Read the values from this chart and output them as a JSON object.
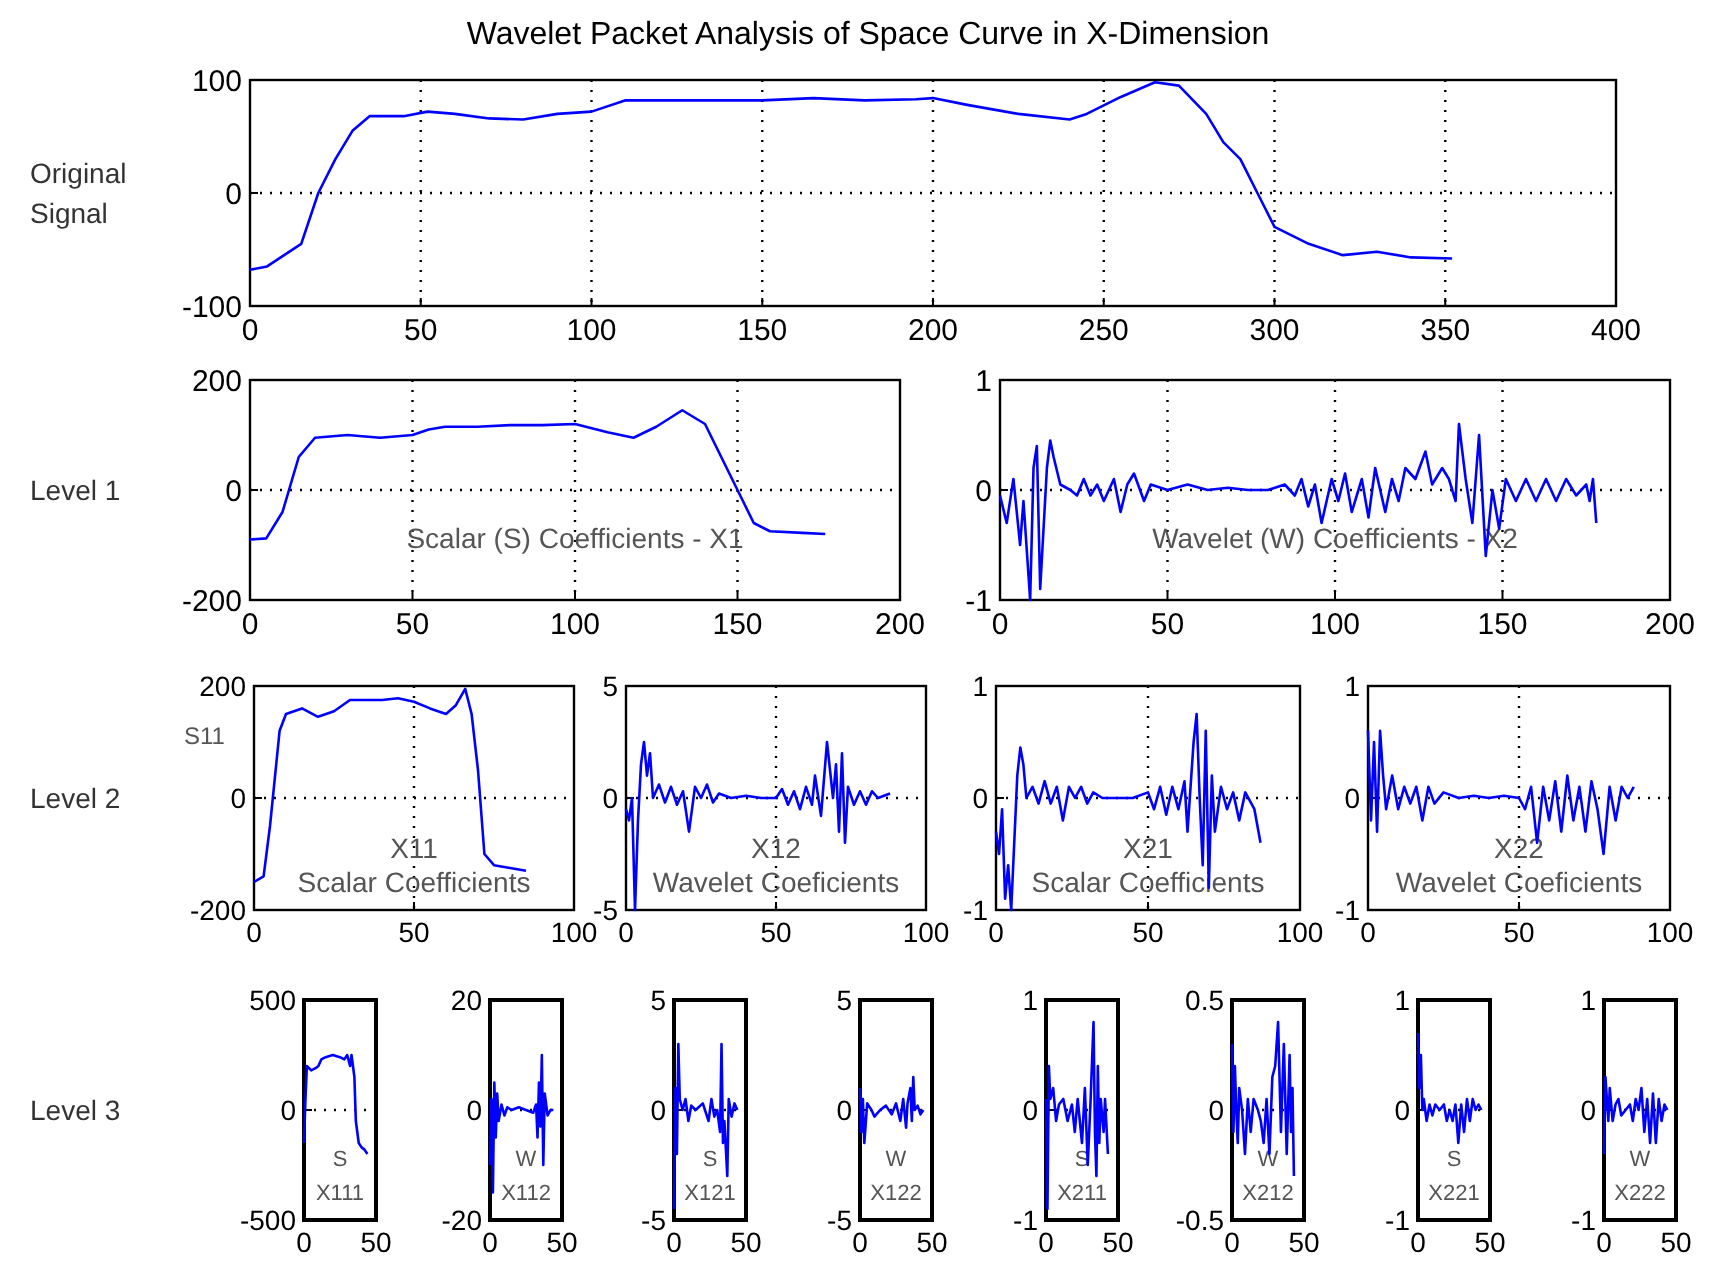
{
  "chart_data": [
    {
      "type": "line",
      "title": "Wavelet Packet Analysis of Space Curve in X-Dimension",
      "ylabel": "Original Signal",
      "color": "#0000ff",
      "grid": true,
      "xlim": [
        0,
        400
      ],
      "xticks": [
        0,
        50,
        100,
        150,
        200,
        250,
        300,
        350,
        400
      ],
      "ylim": [
        -100,
        100
      ],
      "yticks": [
        -100,
        0,
        100
      ],
      "x": [
        0,
        5,
        10,
        15,
        20,
        25,
        30,
        35,
        45,
        52,
        60,
        70,
        80,
        90,
        100,
        110,
        130,
        150,
        165,
        180,
        195,
        200,
        210,
        225,
        240,
        245,
        255,
        265,
        272,
        280,
        285,
        290,
        295,
        300,
        310,
        320,
        330,
        340,
        352
      ],
      "values": [
        -68,
        -65,
        -55,
        -45,
        0,
        30,
        55,
        68,
        68,
        72,
        70,
        66,
        65,
        70,
        72,
        82,
        82,
        82,
        84,
        82,
        83,
        84,
        78,
        70,
        65,
        70,
        85,
        98,
        95,
        70,
        45,
        30,
        0,
        -30,
        -45,
        -55,
        -52,
        -57,
        -58
      ]
    },
    {
      "type": "line",
      "ylabel": "Level 1",
      "annotations": [
        "Scalar (S) Coefficients - X1"
      ],
      "color": "#0000ff",
      "grid": true,
      "xlim": [
        0,
        200
      ],
      "xticks": [
        0,
        50,
        100,
        150,
        200
      ],
      "ylim": [
        -200,
        200
      ],
      "yticks": [
        -200,
        0,
        200
      ],
      "x": [
        0,
        5,
        10,
        15,
        20,
        30,
        40,
        50,
        55,
        60,
        70,
        80,
        90,
        100,
        110,
        118,
        125,
        133,
        140,
        145,
        150,
        155,
        160,
        170,
        177
      ],
      "values": [
        -90,
        -88,
        -40,
        60,
        95,
        100,
        95,
        100,
        110,
        115,
        115,
        118,
        118,
        120,
        105,
        95,
        115,
        145,
        120,
        60,
        0,
        -60,
        -75,
        -78,
        -80
      ]
    },
    {
      "type": "line",
      "annotations": [
        "Wavelet (W) Coefficients - X2"
      ],
      "color": "#0000ff",
      "grid": true,
      "xlim": [
        0,
        200
      ],
      "xticks": [
        0,
        50,
        100,
        150,
        200
      ],
      "ylim": [
        -1,
        1
      ],
      "yticks": [
        -1,
        0,
        1
      ],
      "x": [
        0,
        2,
        4,
        6,
        7,
        9,
        10,
        11,
        12,
        14,
        15,
        16,
        18,
        21,
        23,
        25,
        27,
        29,
        31,
        34,
        36,
        38,
        40,
        43,
        45,
        50,
        56,
        62,
        68,
        74,
        80,
        85,
        88,
        90,
        92,
        94,
        96,
        99,
        101,
        103,
        105,
        108,
        110,
        112,
        115,
        117,
        119,
        121,
        124,
        127,
        129,
        132,
        134,
        136,
        137,
        139,
        141,
        143,
        145,
        147,
        149,
        151,
        154,
        157,
        160,
        163,
        166,
        169,
        172,
        175,
        176,
        177,
        178
      ],
      "values": [
        -0.05,
        -0.3,
        0.1,
        -0.5,
        -0.1,
        -1.0,
        0.2,
        0.4,
        -0.9,
        0.2,
        0.45,
        0.3,
        0.05,
        0,
        -0.05,
        0.1,
        -0.05,
        0.05,
        -0.1,
        0.1,
        -0.2,
        0.05,
        0.15,
        -0.1,
        0.05,
        0,
        0.05,
        0,
        0.02,
        0,
        0,
        0.05,
        -0.05,
        0.1,
        -0.15,
        0.05,
        -0.3,
        0.1,
        -0.1,
        0.15,
        -0.2,
        0.1,
        -0.25,
        0.2,
        -0.2,
        0.1,
        -0.1,
        0.2,
        0.1,
        0.35,
        0.05,
        0.2,
        0.1,
        -0.1,
        0.6,
        0.1,
        -0.3,
        0.5,
        -0.6,
        0,
        -0.35,
        0.1,
        -0.1,
        0.1,
        -0.1,
        0.1,
        -0.1,
        0.1,
        -0.05,
        0.05,
        -0.1,
        0.1,
        -0.3
      ]
    },
    {
      "type": "line",
      "ylabel": "Level 2",
      "annotations": [
        "X11",
        "Scalar Coefficients"
      ],
      "color": "#0000ff",
      "grid": true,
      "xlim": [
        0,
        100
      ],
      "xticks": [
        0,
        50,
        100
      ],
      "ylim": [
        -200,
        200
      ],
      "yticks": [
        -200,
        0,
        200
      ],
      "x": [
        0,
        3,
        5,
        8,
        10,
        15,
        20,
        25,
        30,
        40,
        45,
        50,
        55,
        60,
        63,
        66,
        68,
        70,
        72,
        75,
        80,
        85
      ],
      "values": [
        -150,
        -140,
        -50,
        120,
        150,
        160,
        145,
        155,
        175,
        175,
        178,
        172,
        160,
        150,
        165,
        195,
        150,
        50,
        -100,
        -120,
        -125,
        -130
      ]
    },
    {
      "type": "line",
      "annotations": [
        "X12",
        "Wavelet Coeficients"
      ],
      "color": "#0000ff",
      "grid": true,
      "xlim": [
        0,
        100
      ],
      "xticks": [
        0,
        50,
        100
      ],
      "ylim": [
        -5,
        5
      ],
      "yticks": [
        -5,
        0,
        5
      ],
      "x": [
        0,
        1,
        2,
        3,
        4,
        5,
        6,
        7,
        8,
        9,
        11,
        13,
        15,
        17,
        19,
        21,
        23,
        25,
        27,
        29,
        31,
        35,
        40,
        45,
        50,
        52,
        54,
        56,
        58,
        60,
        62,
        63,
        65,
        67,
        69,
        70,
        71,
        72,
        73,
        74,
        76,
        78,
        80,
        82,
        84,
        88
      ],
      "values": [
        -0.5,
        -1,
        0,
        -5,
        -1,
        1.5,
        2.5,
        1,
        2,
        0,
        0.6,
        -0.2,
        0.5,
        -0.3,
        0.3,
        -1.5,
        0.5,
        0,
        0.6,
        -0.2,
        0.2,
        0,
        0.1,
        0,
        0,
        0.4,
        -0.3,
        0.3,
        -0.5,
        0.5,
        -0.3,
        1,
        -0.8,
        2.5,
        0,
        1.5,
        -1.5,
        2,
        -2,
        0.5,
        -0.3,
        0.3,
        -0.3,
        0.3,
        0,
        0.2
      ]
    },
    {
      "type": "line",
      "annotations": [
        "X21",
        "Scalar Coefficients"
      ],
      "color": "#0000ff",
      "grid": true,
      "xlim": [
        0,
        100
      ],
      "xticks": [
        0,
        50,
        100
      ],
      "ylim": [
        -1,
        1
      ],
      "yticks": [
        -1,
        0,
        1
      ],
      "x": [
        0,
        1,
        2,
        3,
        4,
        5,
        6,
        7,
        8,
        9,
        10,
        12,
        14,
        16,
        18,
        20,
        22,
        24,
        26,
        28,
        30,
        32,
        35,
        40,
        45,
        50,
        52,
        54,
        56,
        58,
        60,
        62,
        63,
        65,
        66,
        67,
        68,
        69,
        70,
        71,
        72,
        74,
        76,
        78,
        80,
        82,
        85,
        87
      ],
      "values": [
        -0.3,
        -0.5,
        -0.1,
        -0.9,
        -0.6,
        -1,
        -0.4,
        0.2,
        0.45,
        0.3,
        0,
        0.1,
        -0.05,
        0.15,
        -0.05,
        0.1,
        -0.2,
        0.1,
        0,
        0.1,
        -0.05,
        0.05,
        0,
        0,
        0,
        0.05,
        -0.1,
        0.1,
        -0.15,
        0.1,
        -0.1,
        0.15,
        -0.3,
        0.5,
        0.75,
        0,
        -0.6,
        0.6,
        -0.8,
        0.2,
        -0.3,
        0.1,
        -0.1,
        0.05,
        -0.2,
        0.05,
        -0.1,
        -0.4
      ]
    },
    {
      "type": "line",
      "annotations": [
        "X22",
        "Wavelet Coeficients"
      ],
      "color": "#0000ff",
      "grid": true,
      "xlim": [
        0,
        100
      ],
      "xticks": [
        0,
        50,
        100
      ],
      "ylim": [
        -1,
        1
      ],
      "yticks": [
        -1,
        0,
        1
      ],
      "x": [
        0,
        1,
        2,
        3,
        4,
        5,
        6,
        8,
        10,
        12,
        14,
        16,
        18,
        20,
        22,
        25,
        30,
        35,
        40,
        45,
        50,
        52,
        54,
        56,
        58,
        60,
        62,
        64,
        66,
        68,
        70,
        72,
        74,
        76,
        78,
        80,
        82,
        84,
        86,
        88
      ],
      "values": [
        0.6,
        -0.2,
        0.5,
        -0.3,
        0.6,
        0.2,
        -0.1,
        0.2,
        -0.1,
        0.1,
        -0.05,
        0.1,
        -0.2,
        0.1,
        -0.05,
        0.05,
        0,
        0.02,
        0,
        0.02,
        0,
        -0.1,
        0.1,
        -0.4,
        0.1,
        -0.2,
        0.15,
        -0.3,
        0.2,
        -0.2,
        0.1,
        -0.3,
        0.15,
        -0.1,
        -0.5,
        0.1,
        -0.2,
        0.1,
        0,
        0.1
      ]
    },
    {
      "type": "line",
      "ylabel": "Level 3",
      "annotations": [
        "S",
        "X111"
      ],
      "color": "#0000ff",
      "grid": true,
      "xlim": [
        0,
        50
      ],
      "xticks": [
        0,
        50
      ],
      "ylim": [
        -500,
        500
      ],
      "yticks": [
        -500,
        0,
        500
      ],
      "x": [
        0,
        1,
        2,
        5,
        8,
        10,
        12,
        15,
        20,
        25,
        28,
        30,
        32,
        33,
        35,
        36,
        37,
        38,
        40,
        42,
        44
      ],
      "values": [
        -150,
        50,
        200,
        180,
        190,
        200,
        230,
        240,
        250,
        240,
        230,
        250,
        200,
        250,
        150,
        -50,
        -100,
        -150,
        -170,
        -180,
        -200
      ]
    },
    {
      "type": "line",
      "annotations": [
        "W",
        "X112"
      ],
      "color": "#0000ff",
      "grid": true,
      "xlim": [
        0,
        50
      ],
      "xticks": [
        0,
        50
      ],
      "ylim": [
        -20,
        20
      ],
      "yticks": [
        -20,
        0,
        20
      ],
      "x": [
        0,
        1,
        2,
        3,
        4,
        5,
        6,
        8,
        10,
        12,
        15,
        20,
        25,
        30,
        32,
        33,
        34,
        35,
        36,
        37,
        38,
        40,
        42,
        44
      ],
      "values": [
        -10,
        2,
        -15,
        5,
        -5,
        3,
        -2,
        1,
        -1,
        0.5,
        0,
        0.5,
        0,
        -0.5,
        1,
        -5,
        5,
        -3,
        10,
        -10,
        3,
        -1,
        0,
        0
      ]
    },
    {
      "type": "line",
      "annotations": [
        "S",
        "X121"
      ],
      "color": "#0000ff",
      "grid": true,
      "xlim": [
        0,
        50
      ],
      "xticks": [
        0,
        50
      ],
      "ylim": [
        -5,
        5
      ],
      "yticks": [
        -5,
        0,
        5
      ],
      "x": [
        0,
        1,
        2,
        3,
        4,
        6,
        8,
        10,
        12,
        15,
        20,
        24,
        26,
        28,
        30,
        32,
        33,
        34,
        35,
        37,
        38,
        40,
        42,
        44
      ],
      "values": [
        -4.5,
        1,
        -2,
        3,
        0.5,
        0,
        0.5,
        -0.5,
        0.2,
        0,
        0.3,
        -0.5,
        0.5,
        -0.3,
        0,
        -1,
        3,
        -1.5,
        -0.5,
        -3,
        0.5,
        -0.3,
        0.3,
        0
      ]
    },
    {
      "type": "line",
      "annotations": [
        "W",
        "X122"
      ],
      "color": "#0000ff",
      "grid": true,
      "xlim": [
        0,
        50
      ],
      "xticks": [
        0,
        50
      ],
      "ylim": [
        -5,
        5
      ],
      "yticks": [
        -5,
        0,
        5
      ],
      "x": [
        0,
        1,
        2,
        3,
        5,
        8,
        10,
        14,
        18,
        22,
        25,
        28,
        30,
        32,
        33,
        35,
        36,
        37,
        38,
        40,
        42,
        44
      ],
      "values": [
        1,
        -1,
        0.5,
        -1.5,
        0.3,
        0,
        -0.3,
        0,
        0.2,
        -0.2,
        0.3,
        -0.5,
        0.5,
        -0.8,
        0.3,
        1,
        -0.5,
        1.5,
        0,
        0.2,
        -0.2,
        0
      ]
    },
    {
      "type": "line",
      "annotations": [
        "S",
        "X211"
      ],
      "color": "#0000ff",
      "grid": true,
      "xlim": [
        0,
        50
      ],
      "xticks": [
        0,
        50
      ],
      "ylim": [
        -1,
        1
      ],
      "yticks": [
        -1,
        0,
        1
      ],
      "x": [
        0,
        1,
        2,
        3,
        5,
        7,
        9,
        12,
        15,
        18,
        20,
        22,
        25,
        27,
        29,
        31,
        33,
        34,
        35,
        36,
        37,
        38,
        40,
        41,
        43
      ],
      "values": [
        0.1,
        -0.9,
        0.4,
        0.1,
        0.2,
        -0.1,
        0.05,
        0.1,
        -0.1,
        0.05,
        -0.2,
        0.1,
        -0.3,
        0.2,
        -0.5,
        0.1,
        0.8,
        -0.2,
        -0.6,
        0.4,
        -0.3,
        0.1,
        -0.2,
        0.1,
        -0.4
      ]
    },
    {
      "type": "line",
      "annotations": [
        "W",
        "X212"
      ],
      "color": "#0000ff",
      "grid": true,
      "xlim": [
        0,
        50
      ],
      "xticks": [
        0,
        50
      ],
      "ylim": [
        -0.5,
        0.5
      ],
      "yticks": [
        -0.5,
        0,
        0.5
      ],
      "x": [
        0,
        1,
        2,
        3,
        4,
        5,
        7,
        9,
        11,
        13,
        15,
        18,
        20,
        22,
        24,
        26,
        28,
        30,
        32,
        34,
        36,
        38,
        40,
        41,
        42,
        43
      ],
      "values": [
        0.3,
        -0.1,
        0.2,
        0,
        -0.15,
        0.1,
        0,
        -0.2,
        0.05,
        -0.1,
        0.05,
        0,
        -0.05,
        -0.15,
        0.05,
        -0.2,
        0.15,
        0.2,
        0.4,
        -0.1,
        0.3,
        -0.2,
        0.25,
        -0.1,
        0.1,
        -0.3
      ]
    },
    {
      "type": "line",
      "annotations": [
        "S",
        "X221"
      ],
      "color": "#0000ff",
      "grid": true,
      "xlim": [
        0,
        50
      ],
      "xticks": [
        0,
        50
      ],
      "ylim": [
        -1,
        1
      ],
      "yticks": [
        -1,
        0,
        1
      ],
      "x": [
        0,
        1,
        2,
        3,
        4,
        6,
        8,
        10,
        12,
        15,
        18,
        20,
        22,
        24,
        26,
        28,
        30,
        32,
        34,
        36,
        38,
        40,
        42,
        44
      ],
      "values": [
        0.7,
        0.2,
        0.5,
        0,
        0.1,
        -0.1,
        0.05,
        -0.05,
        0.05,
        0,
        0.05,
        -0.1,
        0,
        -0.1,
        0.05,
        -0.3,
        0.05,
        -0.2,
        0.1,
        -0.1,
        0.1,
        0,
        0.05,
        0
      ]
    },
    {
      "type": "line",
      "annotations": [
        "W",
        "X222"
      ],
      "color": "#0000ff",
      "grid": true,
      "xlim": [
        0,
        50
      ],
      "xticks": [
        0,
        50
      ],
      "ylim": [
        -1,
        1
      ],
      "yticks": [
        -1,
        0,
        1
      ],
      "x": [
        0,
        1,
        2,
        3,
        4,
        6,
        8,
        10,
        12,
        15,
        18,
        20,
        22,
        24,
        26,
        28,
        30,
        32,
        34,
        36,
        38,
        40,
        42,
        44
      ],
      "values": [
        -0.4,
        0.3,
        0.1,
        -0.1,
        0.2,
        -0.1,
        0.05,
        0.1,
        -0.05,
        0,
        0.05,
        -0.1,
        0.1,
        0,
        0.2,
        -0.2,
        0.1,
        -0.3,
        0.15,
        -0.3,
        0.1,
        -0.1,
        0.05,
        0
      ]
    },
    {
      "type": "other",
      "annotations": [
        "S11"
      ]
    }
  ]
}
